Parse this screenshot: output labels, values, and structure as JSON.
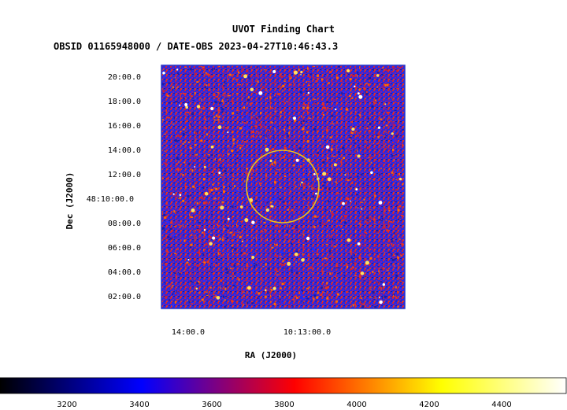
{
  "header": {
    "title": "UVOT Finding Chart",
    "subtitle": "OBSID 01165948000 / DATE-OBS 2023-04-27T10:46:43.3"
  },
  "axes": {
    "xlabel": "RA (J2000)",
    "ylabel": "Dec (J2000)",
    "x_ticks": [
      "14:00.0",
      "10:13:00.0"
    ],
    "y_ticks": [
      "20:00.0",
      "18:00.0",
      "16:00.0",
      "14:00.0",
      "12:00.0",
      "48:10:00.0",
      "08:00.0",
      "06:00.0",
      "04:00.0",
      "02:00.0"
    ]
  },
  "colorbar": {
    "ticks": [
      "3200",
      "3400",
      "3600",
      "3800",
      "4000",
      "4200",
      "4400"
    ],
    "colors": [
      "#000000",
      "#0000ff",
      "#ff0000",
      "#ffff00",
      "#ffffff"
    ]
  },
  "image": {
    "background_colors": [
      "#1a1aa8",
      "#2a2aff",
      "#7a1aa0",
      "#c81e3c",
      "#e8321e",
      "#ff6a00"
    ],
    "frame_color": "#2233cc",
    "circle_color": "#e8c020"
  }
}
